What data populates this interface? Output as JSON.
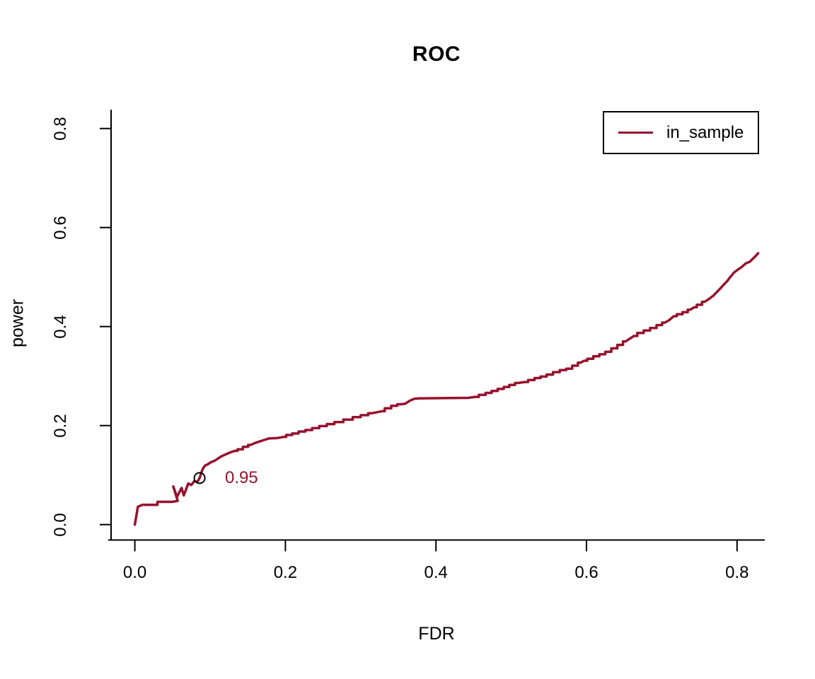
{
  "chart_data": {
    "type": "line",
    "title": "ROC",
    "xlabel": "FDR",
    "ylabel": "power",
    "xlim": [
      -0.033,
      0.863
    ],
    "ylim": [
      -0.032,
      0.832
    ],
    "grid": false,
    "x_ticks": {
      "values": [
        0.0,
        0.2,
        0.4,
        0.6,
        0.8
      ],
      "labels": [
        "0.0",
        "0.2",
        "0.4",
        "0.6",
        "0.8"
      ]
    },
    "y_ticks": {
      "values": [
        0.0,
        0.2,
        0.4,
        0.6,
        0.8
      ],
      "labels": [
        "0.0",
        "0.2",
        "0.4",
        "0.6",
        "0.8"
      ]
    },
    "legend": {
      "position": "top-right",
      "items": [
        {
          "label": "in_sample",
          "color": "#96122d"
        }
      ]
    },
    "annotations": [
      {
        "type": "open-circle-with-label",
        "x": 0.086,
        "y": 0.094,
        "label": "0.95",
        "label_color": "#96122d",
        "circle_color": "#000000"
      }
    ],
    "colors": {
      "curve": "#96122d",
      "axis": "#000000",
      "background": "#ffffff"
    },
    "series": [
      {
        "name": "in_sample",
        "color": "#96122d",
        "points": [
          [
            0.0,
            0.0
          ],
          [
            0.004,
            0.036
          ],
          [
            0.01,
            0.04
          ],
          [
            0.05,
            0.046
          ],
          [
            0.057,
            0.048
          ],
          [
            0.051,
            0.077
          ],
          [
            0.056,
            0.056
          ],
          [
            0.062,
            0.074
          ],
          [
            0.065,
            0.059
          ],
          [
            0.071,
            0.083
          ],
          [
            0.075,
            0.08
          ],
          [
            0.079,
            0.088
          ],
          [
            0.083,
            0.086
          ],
          [
            0.086,
            0.094
          ],
          [
            0.088,
            0.103
          ],
          [
            0.09,
            0.112
          ],
          [
            0.093,
            0.119
          ],
          [
            0.097,
            0.122
          ],
          [
            0.101,
            0.126
          ],
          [
            0.106,
            0.129
          ],
          [
            0.111,
            0.134
          ],
          [
            0.115,
            0.138
          ],
          [
            0.121,
            0.142
          ],
          [
            0.127,
            0.146
          ],
          [
            0.133,
            0.149
          ],
          [
            0.14,
            0.152
          ],
          [
            0.147,
            0.157
          ],
          [
            0.154,
            0.161
          ],
          [
            0.16,
            0.165
          ],
          [
            0.166,
            0.168
          ],
          [
            0.172,
            0.171
          ],
          [
            0.178,
            0.174
          ],
          [
            0.19,
            0.175
          ],
          [
            0.197,
            0.177
          ],
          [
            0.205,
            0.181
          ],
          [
            0.213,
            0.184
          ],
          [
            0.222,
            0.188
          ],
          [
            0.231,
            0.191
          ],
          [
            0.24,
            0.195
          ],
          [
            0.25,
            0.199
          ],
          [
            0.26,
            0.203
          ],
          [
            0.27,
            0.207
          ],
          [
            0.284,
            0.212
          ],
          [
            0.295,
            0.217
          ],
          [
            0.305,
            0.221
          ],
          [
            0.315,
            0.225
          ],
          [
            0.322,
            0.227
          ],
          [
            0.328,
            0.229
          ],
          [
            0.336,
            0.235
          ],
          [
            0.345,
            0.24
          ],
          [
            0.352,
            0.243
          ],
          [
            0.359,
            0.244
          ],
          [
            0.365,
            0.25
          ],
          [
            0.371,
            0.254
          ],
          [
            0.377,
            0.255
          ],
          [
            0.443,
            0.256
          ],
          [
            0.452,
            0.258
          ],
          [
            0.462,
            0.262
          ],
          [
            0.47,
            0.266
          ],
          [
            0.478,
            0.27
          ],
          [
            0.486,
            0.274
          ],
          [
            0.494,
            0.278
          ],
          [
            0.501,
            0.282
          ],
          [
            0.509,
            0.286
          ],
          [
            0.518,
            0.288
          ],
          [
            0.527,
            0.292
          ],
          [
            0.535,
            0.296
          ],
          [
            0.543,
            0.299
          ],
          [
            0.551,
            0.303
          ],
          [
            0.56,
            0.308
          ],
          [
            0.569,
            0.312
          ],
          [
            0.577,
            0.315
          ],
          [
            0.585,
            0.321
          ],
          [
            0.592,
            0.327
          ],
          [
            0.597,
            0.331
          ],
          [
            0.605,
            0.335
          ],
          [
            0.613,
            0.34
          ],
          [
            0.621,
            0.344
          ],
          [
            0.629,
            0.349
          ],
          [
            0.637,
            0.356
          ],
          [
            0.645,
            0.363
          ],
          [
            0.652,
            0.37
          ],
          [
            0.658,
            0.376
          ],
          [
            0.663,
            0.381
          ],
          [
            0.672,
            0.387
          ],
          [
            0.68,
            0.392
          ],
          [
            0.689,
            0.397
          ],
          [
            0.697,
            0.403
          ],
          [
            0.704,
            0.408
          ],
          [
            0.71,
            0.413
          ],
          [
            0.716,
            0.421
          ],
          [
            0.724,
            0.425
          ],
          [
            0.731,
            0.429
          ],
          [
            0.738,
            0.434
          ],
          [
            0.743,
            0.439
          ],
          [
            0.75,
            0.444
          ],
          [
            0.757,
            0.45
          ],
          [
            0.763,
            0.456
          ],
          [
            0.769,
            0.463
          ],
          [
            0.774,
            0.471
          ],
          [
            0.779,
            0.479
          ],
          [
            0.782,
            0.484
          ],
          [
            0.787,
            0.492
          ],
          [
            0.791,
            0.5
          ],
          [
            0.796,
            0.509
          ],
          [
            0.801,
            0.515
          ],
          [
            0.806,
            0.52
          ],
          [
            0.812,
            0.528
          ],
          [
            0.817,
            0.531
          ],
          [
            0.821,
            0.537
          ],
          [
            0.825,
            0.543
          ],
          [
            0.828,
            0.548
          ]
        ]
      }
    ]
  }
}
